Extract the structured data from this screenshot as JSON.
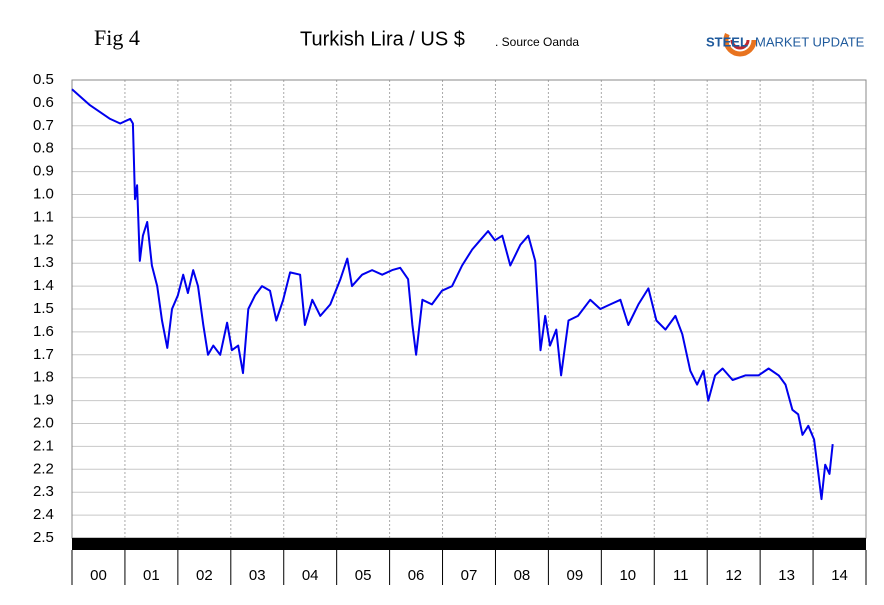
{
  "figure_label": "Fig 4",
  "logo": {
    "bold": "STEEL",
    "rest": "MARKET UPDATE"
  },
  "chart_data": {
    "type": "line",
    "title": "Turkish Lira / US $",
    "subtitle": ". Source Oanda",
    "categories": [
      "00",
      "01",
      "02",
      "03",
      "04",
      "05",
      "06",
      "07",
      "08",
      "09",
      "10",
      "11",
      "12",
      "13",
      "14"
    ],
    "xlim": [
      0,
      15
    ],
    "ylim": [
      0.5,
      2.5
    ],
    "y_inverted": true,
    "yticks": [
      0.5,
      0.6,
      0.7,
      0.8,
      0.9,
      {
        "value": 1,
        "label": "1.0"
      },
      1.1,
      1.2,
      1.3,
      1.4,
      1.5,
      1.6,
      1.7,
      1.8,
      1.9,
      {
        "value": 2,
        "label": "2.0"
      },
      2.1,
      2.2,
      2.3,
      2.4,
      2.5
    ],
    "grid": true,
    "series": [
      {
        "name": "Turkish Lira / US $",
        "color": "#0000ee",
        "x": [
          0,
          0.34,
          0.72,
          0.91,
          1.1,
          1.15,
          1.19,
          1.23,
          1.28,
          1.34,
          1.42,
          1.51,
          1.61,
          1.7,
          1.8,
          1.89,
          2.0,
          2.1,
          2.19,
          2.29,
          2.38,
          2.48,
          2.57,
          2.67,
          2.8,
          2.93,
          3.02,
          3.14,
          3.23,
          3.33,
          3.46,
          3.59,
          3.74,
          3.86,
          3.99,
          4.12,
          4.31,
          4.4,
          4.54,
          4.69,
          4.88,
          5.07,
          5.2,
          5.29,
          5.48,
          5.67,
          5.86,
          6.05,
          6.2,
          6.35,
          6.43,
          6.5,
          6.62,
          6.8,
          6.99,
          7.18,
          7.37,
          7.56,
          7.71,
          7.86,
          7.99,
          8.13,
          8.28,
          8.47,
          8.62,
          8.75,
          8.85,
          8.94,
          9.03,
          9.15,
          9.24,
          9.38,
          9.56,
          9.79,
          9.98,
          10.17,
          10.36,
          10.51,
          10.7,
          10.89,
          11.04,
          11.21,
          11.4,
          11.53,
          11.68,
          11.81,
          11.93,
          12.02,
          12.15,
          12.29,
          12.48,
          12.72,
          12.97,
          13.16,
          13.35,
          13.48,
          13.61,
          13.72,
          13.8,
          13.91,
          14.02,
          14.1,
          14.16,
          14.23,
          14.31,
          14.37
        ],
        "values": [
          0.54,
          0.61,
          0.67,
          0.69,
          0.67,
          0.69,
          1.02,
          0.96,
          1.29,
          1.18,
          1.12,
          1.31,
          1.4,
          1.55,
          1.67,
          1.5,
          1.44,
          1.35,
          1.43,
          1.33,
          1.4,
          1.57,
          1.7,
          1.66,
          1.7,
          1.56,
          1.68,
          1.66,
          1.78,
          1.5,
          1.44,
          1.4,
          1.42,
          1.55,
          1.46,
          1.34,
          1.35,
          1.57,
          1.46,
          1.53,
          1.48,
          1.37,
          1.28,
          1.4,
          1.35,
          1.33,
          1.35,
          1.33,
          1.32,
          1.37,
          1.57,
          1.7,
          1.46,
          1.48,
          1.42,
          1.4,
          1.31,
          1.24,
          1.2,
          1.16,
          1.2,
          1.18,
          1.31,
          1.22,
          1.18,
          1.29,
          1.68,
          1.53,
          1.66,
          1.59,
          1.79,
          1.55,
          1.53,
          1.46,
          1.5,
          1.48,
          1.46,
          1.57,
          1.48,
          1.41,
          1.55,
          1.59,
          1.53,
          1.61,
          1.77,
          1.83,
          1.77,
          1.9,
          1.79,
          1.76,
          1.81,
          1.79,
          1.79,
          1.76,
          1.79,
          1.83,
          1.94,
          1.96,
          2.05,
          2.01,
          2.07,
          2.22,
          2.33,
          2.18,
          2.22,
          2.09
        ]
      }
    ]
  }
}
